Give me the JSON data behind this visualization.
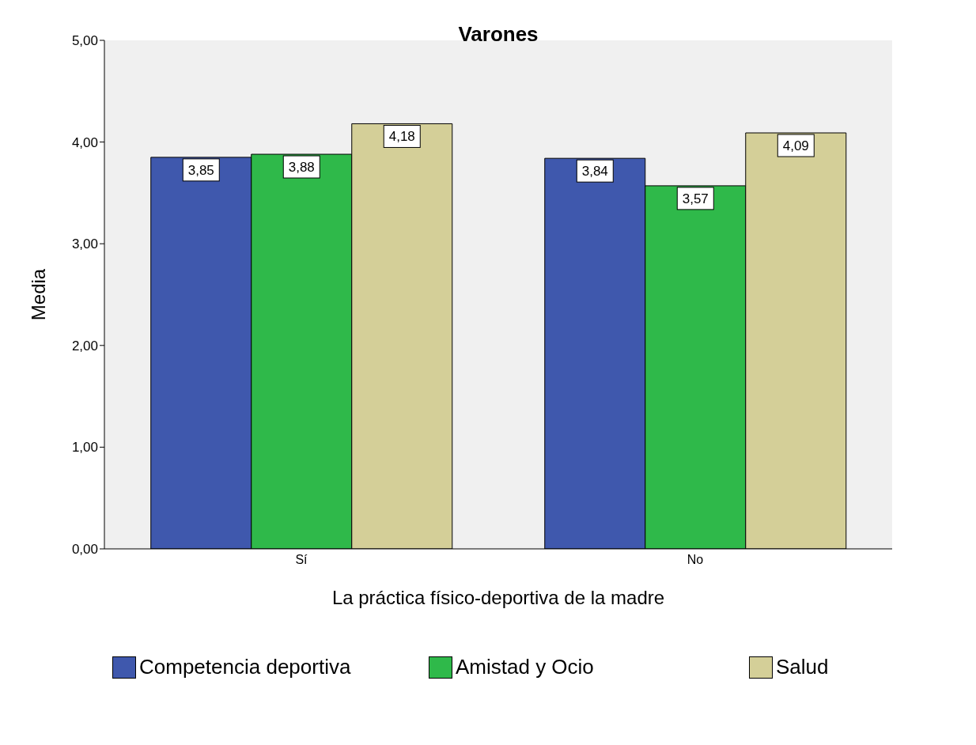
{
  "chart_data": {
    "type": "bar",
    "title": "Varones",
    "xlabel": "La práctica físico-deportiva de la madre",
    "ylabel": "Media",
    "categories": [
      "Sí",
      "No"
    ],
    "series": [
      {
        "name": "Competencia deportiva",
        "color": "#3f58ad",
        "values": [
          3.85,
          3.84
        ],
        "value_labels": [
          "3,85",
          "3,84"
        ]
      },
      {
        "name": "Amistad y Ocio",
        "color": "#2fb94a",
        "values": [
          3.88,
          3.57
        ],
        "value_labels": [
          "3,88",
          "3,57"
        ]
      },
      {
        "name": "Salud",
        "color": "#d4cf98",
        "values": [
          4.18,
          4.09
        ],
        "value_labels": [
          "4,18",
          "4,09"
        ]
      }
    ],
    "ylim": [
      0,
      5
    ],
    "yticks": [
      {
        "value": 0,
        "label": "0,00"
      },
      {
        "value": 1,
        "label": "1,00"
      },
      {
        "value": 2,
        "label": "2,00"
      },
      {
        "value": 3,
        "label": "3,00"
      },
      {
        "value": 4,
        "label": "4,00"
      },
      {
        "value": 5,
        "label": "5,00"
      }
    ],
    "grid": false,
    "legend": "bottom"
  }
}
